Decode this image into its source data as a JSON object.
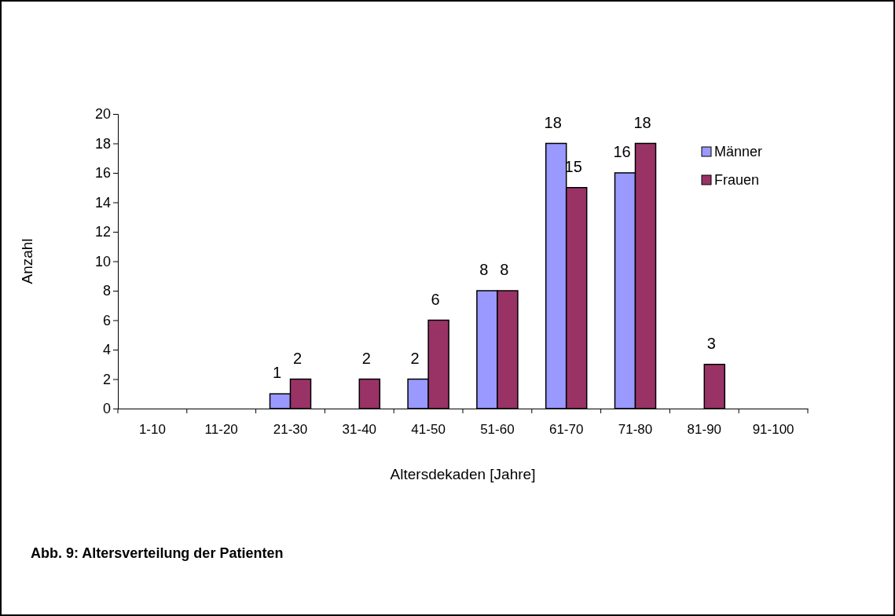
{
  "chart_data": {
    "type": "bar",
    "title": "Abb. 9: Altersverteilung der Patienten",
    "xlabel": "Altersdekaden [Jahre]",
    "ylabel": "Anzahl",
    "categories": [
      "1-10",
      "11-20",
      "21-30",
      "31-40",
      "41-50",
      "51-60",
      "61-70",
      "71-80",
      "81-90",
      "91-100"
    ],
    "series": [
      {
        "name": "Männer",
        "color": "#9999ff",
        "values": [
          null,
          null,
          1,
          null,
          2,
          8,
          18,
          16,
          null,
          null
        ]
      },
      {
        "name": "Frauen",
        "color": "#993366",
        "values": [
          null,
          null,
          2,
          2,
          6,
          8,
          15,
          18,
          3,
          null
        ]
      }
    ],
    "ylim": [
      0,
      20
    ],
    "yticks": [
      0,
      2,
      4,
      6,
      8,
      10,
      12,
      14,
      16,
      18,
      20
    ],
    "data_labels": true,
    "legend": "top right",
    "grid": false
  }
}
